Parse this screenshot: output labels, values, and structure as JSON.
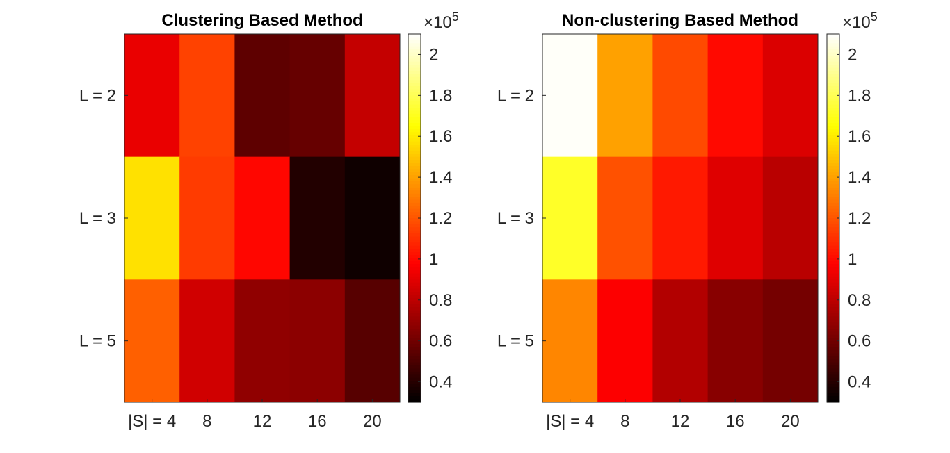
{
  "chart_data": [
    {
      "type": "heatmap",
      "title": "Clustering Based Method",
      "x_ticks": [
        "|S| = 4",
        "8",
        "12",
        "16",
        "20"
      ],
      "y_ticks": [
        "L = 2",
        "L = 3",
        "L = 5"
      ],
      "values": [
        [
          92000,
          115000,
          55000,
          57000,
          82000
        ],
        [
          157000,
          113000,
          99000,
          39000,
          34000
        ],
        [
          123000,
          85000,
          68000,
          67000,
          53000
        ]
      ],
      "colorbar": {
        "range": [
          30000,
          210000
        ],
        "ticks": [
          "0.4",
          "0.6",
          "0.8",
          "1",
          "1.2",
          "1.4",
          "1.6",
          "1.8",
          "2"
        ],
        "multiplier": "×10",
        "exponent": "5"
      }
    },
    {
      "type": "heatmap",
      "title": "Non-clustering Based Method",
      "x_ticks": [
        "|S| = 4",
        "8",
        "12",
        "16",
        "20"
      ],
      "y_ticks": [
        "L = 2",
        "L = 3",
        "L = 5"
      ],
      "values": [
        [
          209000,
          140000,
          117000,
          100000,
          88000
        ],
        [
          172000,
          119000,
          104000,
          89000,
          79000
        ],
        [
          133000,
          97000,
          77000,
          66000,
          61000
        ]
      ],
      "colorbar": {
        "range": [
          30000,
          210000
        ],
        "ticks": [
          "0.4",
          "0.6",
          "0.8",
          "1",
          "1.2",
          "1.4",
          "1.6",
          "1.8",
          "2"
        ],
        "multiplier": "×10",
        "exponent": "5"
      }
    }
  ]
}
